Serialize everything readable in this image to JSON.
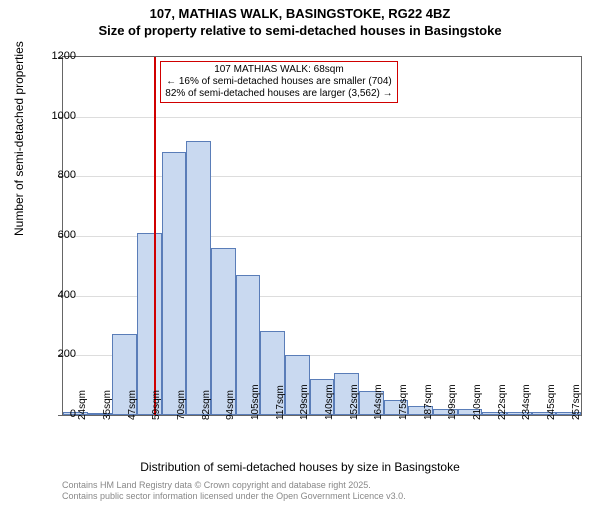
{
  "title": {
    "main": "107, MATHIAS WALK, BASINGSTOKE, RG22 4BZ",
    "sub": "Size of property relative to semi-detached houses in Basingstoke"
  },
  "yaxis": {
    "label": "Number of semi-detached properties",
    "ticks": [
      0,
      200,
      400,
      600,
      800,
      1000,
      1200
    ],
    "max": 1200
  },
  "xaxis": {
    "label": "Distribution of semi-detached houses by size in Basingstoke",
    "ticks": [
      "24sqm",
      "35sqm",
      "47sqm",
      "59sqm",
      "70sqm",
      "82sqm",
      "94sqm",
      "105sqm",
      "117sqm",
      "129sqm",
      "140sqm",
      "152sqm",
      "164sqm",
      "175sqm",
      "187sqm",
      "199sqm",
      "210sqm",
      "222sqm",
      "234sqm",
      "245sqm",
      "257sqm"
    ]
  },
  "bars": {
    "values": [
      10,
      8,
      270,
      610,
      880,
      920,
      560,
      470,
      280,
      200,
      120,
      140,
      80,
      50,
      30,
      20,
      20,
      10,
      10,
      10,
      10
    ],
    "fill_color": "#c9d9f0",
    "border_color": "#5a7db8"
  },
  "marker": {
    "x_index": 3.7,
    "color": "#d00000"
  },
  "annotation": {
    "lines": [
      "107 MATHIAS WALK: 68sqm",
      "← 16% of semi-detached houses are smaller (704)",
      "82% of semi-detached houses are larger (3,562) →"
    ],
    "border_color": "#d00000"
  },
  "footer": {
    "line1": "Contains HM Land Registry data © Crown copyright and database right 2025.",
    "line2": "Contains public sector information licensed under the Open Government Licence v3.0."
  },
  "styling": {
    "background": "#ffffff",
    "grid_color": "#dddddd",
    "axis_color": "#666666",
    "title_fontsize": 13,
    "label_fontsize": 12,
    "tick_fontsize": 11
  }
}
